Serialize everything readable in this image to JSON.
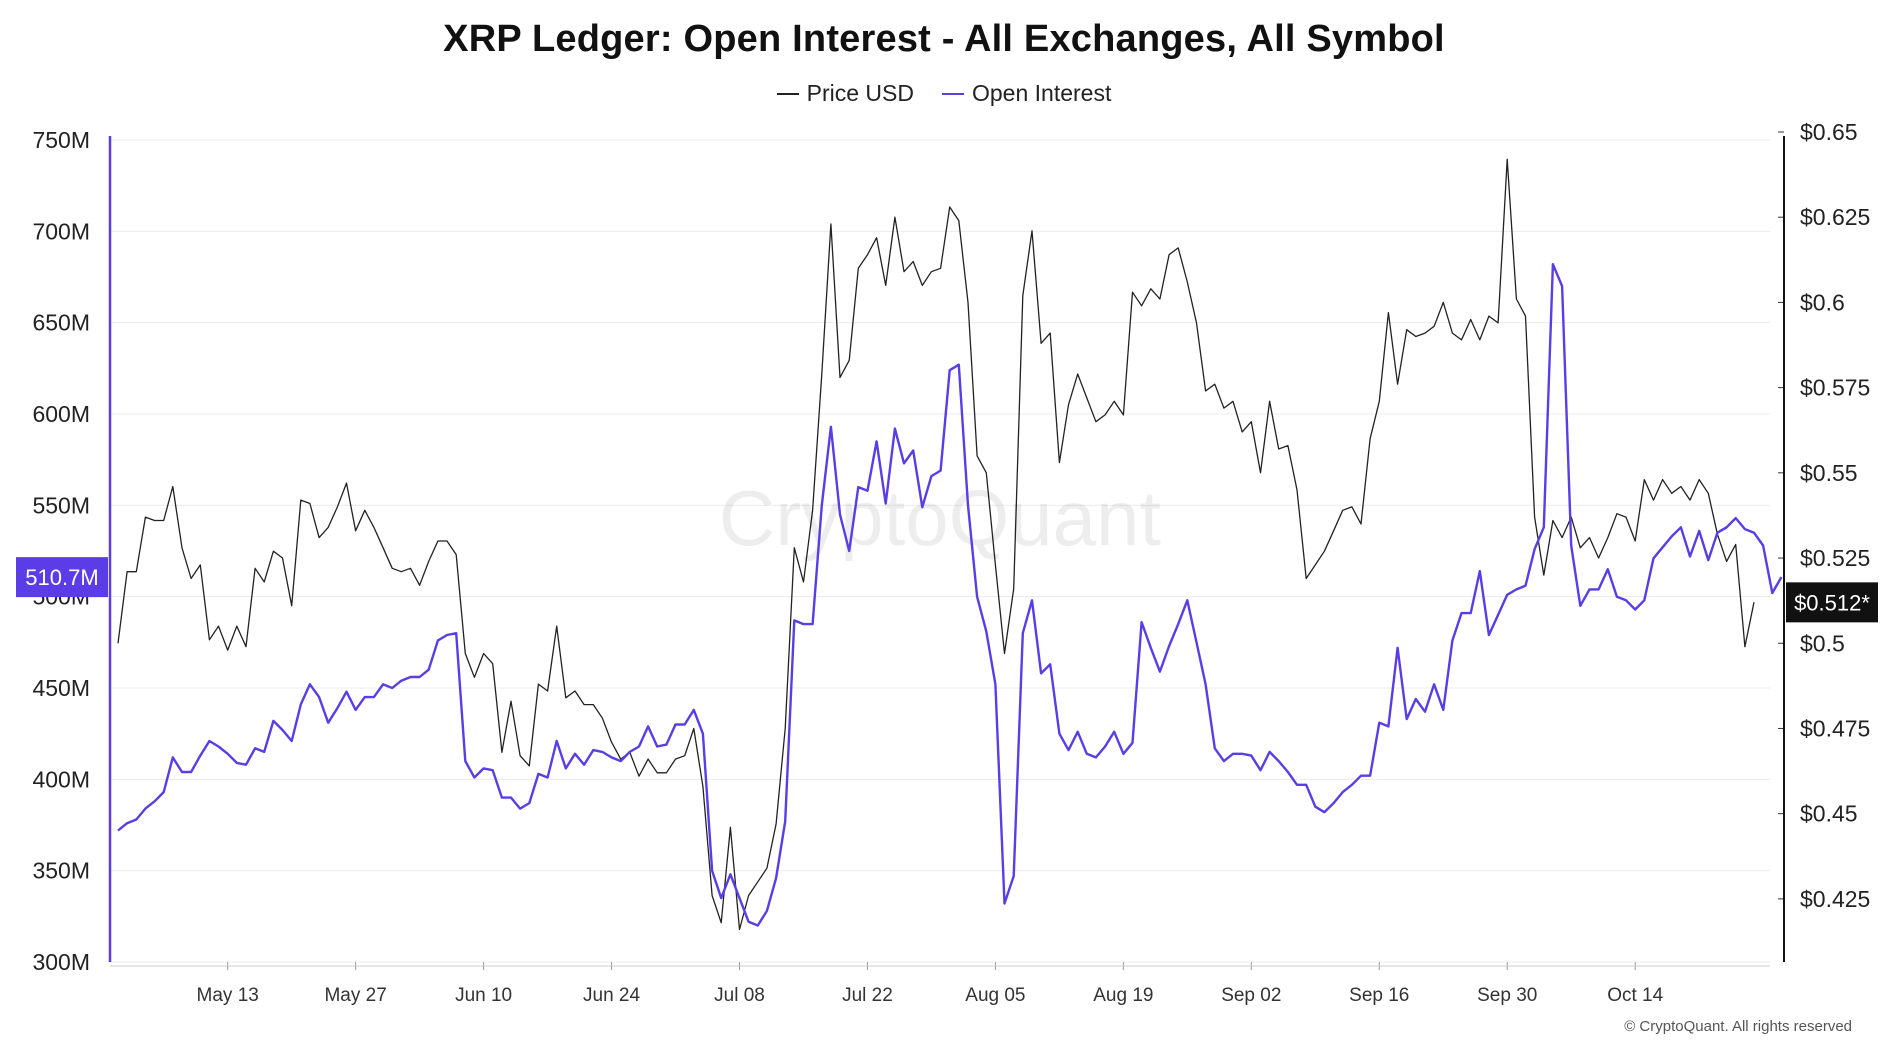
{
  "chart_data": {
    "type": "line",
    "title": "XRP Ledger: Open Interest - All Exchanges, All Symbol",
    "watermark": "CryptoQuant",
    "copyright": "© CryptoQuant. All rights reserved",
    "x_start": "2024-05-01",
    "x_step_days": 1,
    "x_tick_labels": [
      "May 13",
      "May 27",
      "Jun 10",
      "Jun 24",
      "Jul 08",
      "Jul 22",
      "Aug 05",
      "Aug 19",
      "Sep 02",
      "Sep 16",
      "Sep 30",
      "Oct 14"
    ],
    "x_tick_day_index": [
      12,
      26,
      40,
      54,
      68,
      82,
      96,
      110,
      124,
      138,
      152,
      166
    ],
    "left_axis": {
      "label": "Open Interest",
      "ylim": [
        300,
        750
      ],
      "unit": "M",
      "tick_values": [
        300,
        350,
        400,
        450,
        500,
        550,
        600,
        650,
        700,
        750
      ],
      "tick_labels": [
        "300M",
        "350M",
        "400M",
        "450M",
        "500M",
        "550M",
        "600M",
        "650M",
        "700M",
        "750M"
      ],
      "current_label": "510.7M",
      "current_value": 510.7
    },
    "right_axis": {
      "label": "Price USD",
      "ylim": [
        0.41,
        0.65
      ],
      "tick_values": [
        0.425,
        0.45,
        0.475,
        0.5,
        0.525,
        0.55,
        0.575,
        0.6,
        0.625,
        0.65
      ],
      "tick_labels": [
        "$0.425",
        "$0.45",
        "$0.475",
        "$0.5",
        "$0.525",
        "$0.55",
        "$0.575",
        "$0.6",
        "$0.625",
        "$0.65"
      ],
      "current_label": "$0.512*",
      "current_value": 0.512
    },
    "series": [
      {
        "name": "Price USD",
        "axis": "right",
        "color": "#222222",
        "values": [
          0.5,
          0.521,
          0.521,
          0.537,
          0.536,
          0.536,
          0.546,
          0.528,
          0.519,
          0.523,
          0.501,
          0.505,
          0.498,
          0.505,
          0.499,
          0.522,
          0.518,
          0.527,
          0.525,
          0.511,
          0.542,
          0.541,
          0.531,
          0.534,
          0.54,
          0.547,
          0.533,
          0.539,
          0.534,
          0.528,
          0.522,
          0.521,
          0.522,
          0.517,
          0.524,
          0.53,
          0.53,
          0.526,
          0.497,
          0.49,
          0.497,
          0.494,
          0.468,
          0.483,
          0.467,
          0.464,
          0.488,
          0.486,
          0.505,
          0.484,
          0.486,
          0.482,
          0.482,
          0.478,
          0.471,
          0.466,
          0.468,
          0.461,
          0.466,
          0.462,
          0.462,
          0.466,
          0.467,
          0.475,
          0.458,
          0.426,
          0.418,
          0.446,
          0.416,
          0.426,
          0.43,
          0.434,
          0.447,
          0.475,
          0.528,
          0.518,
          0.539,
          0.579,
          0.623,
          0.578,
          0.583,
          0.61,
          0.614,
          0.619,
          0.605,
          0.625,
          0.609,
          0.612,
          0.605,
          0.609,
          0.61,
          0.628,
          0.624,
          0.6,
          0.555,
          0.55,
          0.523,
          0.497,
          0.516,
          0.602,
          0.621,
          0.588,
          0.591,
          0.553,
          0.57,
          0.579,
          0.572,
          0.565,
          0.567,
          0.571,
          0.567,
          0.603,
          0.599,
          0.604,
          0.601,
          0.614,
          0.616,
          0.606,
          0.594,
          0.574,
          0.576,
          0.569,
          0.571,
          0.562,
          0.565,
          0.55,
          0.571,
          0.557,
          0.558,
          0.545,
          0.519,
          0.523,
          0.527,
          0.533,
          0.539,
          0.54,
          0.535,
          0.56,
          0.571,
          0.597,
          0.576,
          0.592,
          0.59,
          0.591,
          0.593,
          0.6,
          0.591,
          0.589,
          0.595,
          0.589,
          0.596,
          0.594,
          0.642,
          0.601,
          0.596,
          0.537,
          0.52,
          0.536,
          0.531,
          0.537,
          0.528,
          0.531,
          0.525,
          0.531,
          0.538,
          0.537,
          0.53,
          0.548,
          0.542,
          0.548,
          0.544,
          0.546,
          0.542,
          0.548,
          0.544,
          0.532,
          0.524,
          0.529,
          0.499,
          0.512
        ]
      },
      {
        "name": "Open Interest",
        "axis": "left",
        "color": "#5a3de6",
        "values": [
          372,
          376,
          378,
          384,
          388,
          393,
          412,
          404,
          404,
          413,
          421,
          418,
          414,
          409,
          408,
          417,
          415,
          432,
          427,
          421,
          441,
          452,
          445,
          431,
          439,
          448,
          438,
          445,
          445,
          452,
          450,
          454,
          456,
          456,
          460,
          476,
          479,
          480,
          410,
          401,
          406,
          405,
          390,
          390,
          384,
          387,
          403,
          401,
          421,
          406,
          414,
          408,
          416,
          415,
          412,
          410,
          415,
          418,
          429,
          418,
          419,
          430,
          430,
          438,
          425,
          350,
          335,
          348,
          335,
          322,
          320,
          328,
          346,
          377,
          487,
          485,
          485,
          550,
          593,
          545,
          525,
          560,
          558,
          585,
          551,
          592,
          573,
          580,
          549,
          566,
          569,
          624,
          627,
          550,
          500,
          481,
          452,
          332,
          347,
          480,
          498,
          458,
          463,
          425,
          416,
          426,
          414,
          412,
          418,
          426,
          414,
          420,
          486,
          472,
          459,
          473,
          485,
          498,
          475,
          452,
          417,
          410,
          414,
          414,
          413,
          405,
          415,
          410,
          404,
          397,
          397,
          385,
          382,
          387,
          393,
          397,
          402,
          402,
          431,
          429,
          472,
          433,
          444,
          437,
          452,
          438,
          476,
          491,
          491,
          514,
          479,
          490,
          501,
          504,
          506,
          526,
          538,
          682,
          670,
          528,
          495,
          504,
          504,
          515,
          500,
          498,
          493,
          498,
          521,
          527,
          533,
          538,
          522,
          536,
          520,
          535,
          538,
          543,
          537,
          535,
          528,
          502,
          510.7
        ]
      }
    ]
  }
}
